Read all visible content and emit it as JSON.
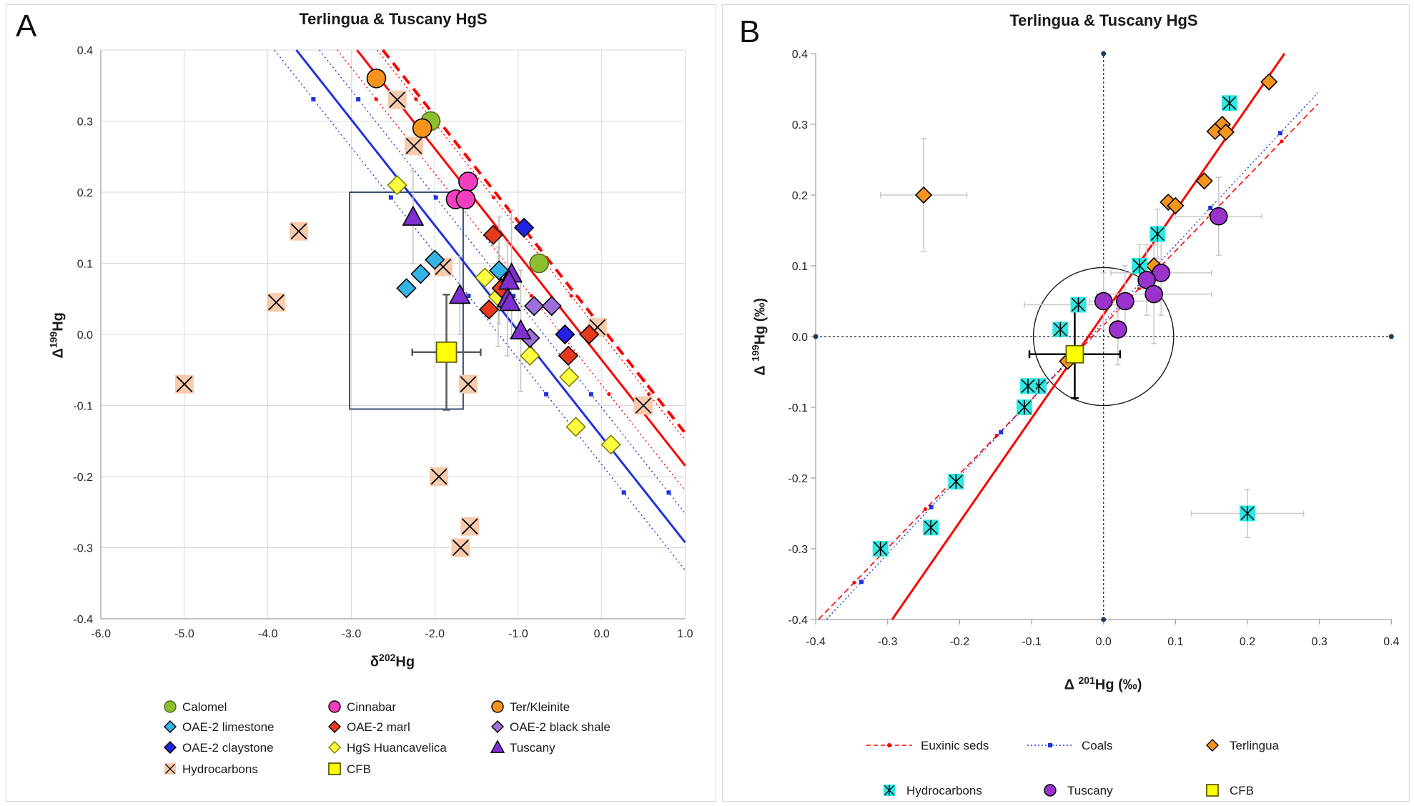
{
  "chart_data": [
    {
      "panel_label": "A",
      "type": "scatter",
      "title": "Terlingua & Tuscany HgS",
      "xlabel": {
        "pre": "δ",
        "sup": "202",
        "post": "Hg"
      },
      "ylabel": {
        "pre": "Δ",
        "sup": "199",
        "post": "Hg"
      },
      "xlim": [
        -6.0,
        1.0
      ],
      "ylim": [
        -0.4,
        0.4
      ],
      "xtick_values": [
        -6,
        -5,
        -4,
        -3,
        -2,
        -1,
        0,
        1
      ],
      "xtick_labels": [
        "-6.0",
        "-5.0",
        "-4.0",
        "-3.0",
        "-2.0",
        "-1.0",
        "0.0",
        "1.0"
      ],
      "ytick_values": [
        0.4,
        0.3,
        0.2,
        0.1,
        0.0,
        -0.1,
        -0.2,
        -0.3,
        -0.4
      ],
      "ytick_labels": [
        "0.4",
        "0.3",
        "0.2",
        "0.1",
        "0.0",
        "-0.1",
        "-0.2",
        "-0.3",
        "-0.4"
      ],
      "grid": true,
      "annotation_box": {
        "x1": -3.02,
        "x2": -1.66,
        "y1": -0.105,
        "y2": 0.2,
        "color": "#1f3864"
      },
      "lines": [
        {
          "name": "coals-ci-lower",
          "color": "#2033dd",
          "width": 1.4,
          "dash": "2 4",
          "slope": -0.1487,
          "intercept": -0.183,
          "x1": -3.92,
          "x2": 1.0,
          "marker": {
            "shape": "square",
            "step": 0.93
          }
        },
        {
          "name": "coals-fit",
          "color": "#2033dd",
          "width": 3,
          "dash": "",
          "slope": -0.1487,
          "intercept": -0.144,
          "x1": -3.659,
          "x2": 1.0
        },
        {
          "name": "coals-ci-upper",
          "color": "#2033dd",
          "width": 1.4,
          "dash": "2 4",
          "slope": -0.1487,
          "intercept": -0.103,
          "x1": -3.382,
          "x2": 1.0,
          "marker": {
            "shape": "square",
            "step": 0.93
          }
        },
        {
          "name": "euxinic-ci-lower",
          "color": "#ff0000",
          "width": 1.4,
          "dash": "2 4",
          "slope": -0.1487,
          "intercept": -0.071,
          "x1": -3.168,
          "x2": 1.0,
          "marker": {
            "shape": "dot",
            "step": 0.93
          }
        },
        {
          "name": "euxinic-fit",
          "color": "#ff0000",
          "width": 3,
          "dash": "",
          "slope": -0.1487,
          "intercept": -0.036,
          "x1": -2.932,
          "x2": 1.0
        },
        {
          "name": "euxinic-ci-upper",
          "color": "#ff0000",
          "width": 1.4,
          "dash": "2 4",
          "slope": -0.1487,
          "intercept": 0.0,
          "x1": -2.69,
          "x2": 1.0,
          "marker": {
            "shape": "dot",
            "step": 0.93
          }
        },
        {
          "name": "reference-dashed",
          "color": "#ff0000",
          "width": 4,
          "dash": "14 9",
          "slope": -0.1487,
          "intercept": 0.01,
          "x1": -2.623,
          "x2": 1.0,
          "marker": {
            "shape": "dot",
            "step": 1.25
          }
        }
      ],
      "error_bars": [
        {
          "x": -2.26,
          "y": 0.165,
          "ey": 0.065
        },
        {
          "x": -1.7,
          "y": 0.055,
          "ey": 0.055
        },
        {
          "x": -1.08,
          "y": 0.085,
          "ey": 0.09
        },
        {
          "x": -1.13,
          "y": 0.05,
          "ey": 0.08
        },
        {
          "x": -0.97,
          "y": 0.005,
          "ey": 0.085
        },
        {
          "x": -1.23,
          "y": 0.09,
          "ey": 0.075
        },
        {
          "x": -1.24,
          "y": 0.053,
          "ey": 0.07
        },
        {
          "x": -1.86,
          "y": -0.025,
          "ex": 0.41,
          "ey": 0.081,
          "color": "#595959",
          "w": 2.5,
          "cap": 10
        }
      ],
      "series": [
        {
          "name": "Hydrocarbons",
          "marker": "xsquare",
          "fill": "#f8cbad",
          "stroke": "#f8cbad",
          "size": 13,
          "points": [
            [
              -5.0,
              -0.07
            ],
            [
              -3.9,
              0.045
            ],
            [
              -3.63,
              0.145
            ],
            [
              -2.45,
              0.33
            ],
            [
              -2.25,
              0.265
            ],
            [
              -1.9,
              0.095
            ],
            [
              -1.95,
              -0.2
            ],
            [
              -1.6,
              -0.07
            ],
            [
              -1.58,
              -0.27
            ],
            [
              -1.69,
              -0.3
            ],
            [
              -0.05,
              0.01
            ],
            [
              0.5,
              -0.1
            ]
          ]
        },
        {
          "name": "HgS Huancavelica",
          "marker": "diamond",
          "fill": "#ffff42",
          "stroke": "#7f7f00",
          "size": 13,
          "points": [
            [
              -2.45,
              0.21
            ],
            [
              -1.4,
              0.08
            ],
            [
              -1.24,
              0.053
            ],
            [
              -0.86,
              -0.03
            ],
            [
              -0.39,
              -0.06
            ],
            [
              -0.31,
              -0.13
            ],
            [
              0.11,
              -0.155
            ]
          ]
        },
        {
          "name": "OAE-2 black shale",
          "marker": "diamond",
          "fill": "#9e6fd8",
          "stroke": "#000000",
          "size": 13,
          "points": [
            [
              -0.81,
              0.04
            ],
            [
              -0.6,
              0.04
            ],
            [
              -0.86,
              -0.005
            ]
          ]
        },
        {
          "name": "OAE-2 marl",
          "marker": "diamond",
          "fill": "#e8391d",
          "stroke": "#000000",
          "size": 13,
          "points": [
            [
              -1.3,
              0.14
            ],
            [
              -1.2,
              0.065
            ],
            [
              -1.35,
              0.035
            ],
            [
              -0.4,
              -0.03
            ],
            [
              -0.15,
              0.0
            ]
          ]
        },
        {
          "name": "OAE-2 limestone",
          "marker": "diamond",
          "fill": "#33b3e6",
          "stroke": "#000000",
          "size": 13,
          "points": [
            [
              -2.34,
              0.065
            ],
            [
              -2.17,
              0.085
            ],
            [
              -2.0,
              0.105
            ],
            [
              -1.23,
              0.09
            ]
          ]
        },
        {
          "name": "OAE-2 claystone",
          "marker": "diamond",
          "fill": "#2222e0",
          "stroke": "#000000",
          "size": 13,
          "points": [
            [
              -0.93,
              0.15
            ],
            [
              -0.44,
              0.0
            ]
          ]
        },
        {
          "name": "Tuscany",
          "marker": "triangle",
          "fill": "#7e2fd0",
          "stroke": "#000000",
          "size": 14,
          "points": [
            [
              -2.26,
              0.165
            ],
            [
              -1.7,
              0.055
            ],
            [
              -1.08,
              0.085
            ],
            [
              -1.11,
              0.075
            ],
            [
              -1.13,
              0.05
            ],
            [
              -1.1,
              0.045
            ],
            [
              -0.97,
              0.005
            ]
          ]
        },
        {
          "name": "Calomel",
          "marker": "circle",
          "fill": "#8cbf2f",
          "stroke": "#4e6b1f",
          "size": 13,
          "points": [
            [
              -2.05,
              0.3
            ],
            [
              -0.75,
              0.1
            ]
          ]
        },
        {
          "name": "Ter/Kleinite",
          "marker": "circle",
          "fill": "#f7941d",
          "stroke": "#000000",
          "size": 13,
          "points": [
            [
              -2.7,
              0.36
            ],
            [
              -2.15,
              0.29
            ]
          ]
        },
        {
          "name": "Cinnabar",
          "marker": "circle",
          "fill": "#f23fc0",
          "stroke": "#000000",
          "size": 13,
          "points": [
            [
              -1.6,
              0.215
            ],
            [
              -1.75,
              0.19
            ],
            [
              -1.63,
              0.19
            ]
          ]
        },
        {
          "name": "CFB",
          "marker": "square",
          "fill": "#ffff00",
          "stroke": "#5f5f00",
          "size": 14,
          "points": [
            [
              -1.86,
              -0.025
            ]
          ]
        }
      ],
      "legend": [
        {
          "label": "Calomel",
          "marker": "circle",
          "fill": "#8cbf2f",
          "stroke": "#4e6b1f"
        },
        {
          "label": "Cinnabar",
          "marker": "circle",
          "fill": "#f23fc0",
          "stroke": "#000000"
        },
        {
          "label": "Ter/Kleinite",
          "marker": "circle",
          "fill": "#f7941d",
          "stroke": "#000000"
        },
        {
          "label": "OAE-2 limestone",
          "marker": "diamond",
          "fill": "#33b3e6",
          "stroke": "#000000"
        },
        {
          "label": "OAE-2 marl",
          "marker": "diamond",
          "fill": "#e8391d",
          "stroke": "#000000"
        },
        {
          "label": "OAE-2 black shale",
          "marker": "diamond",
          "fill": "#9e6fd8",
          "stroke": "#000000"
        },
        {
          "label": "OAE-2 claystone",
          "marker": "diamond",
          "fill": "#2222e0",
          "stroke": "#000000"
        },
        {
          "label": "HgS Huancavelica",
          "marker": "diamond",
          "fill": "#ffff42",
          "stroke": "#7f7f00"
        },
        {
          "label": "Tuscany",
          "marker": "triangle",
          "fill": "#7e2fd0",
          "stroke": "#000000"
        },
        {
          "label": "Hydrocarbons",
          "marker": "xsquare",
          "fill": "#f8cbad",
          "stroke": "#f8cbad"
        },
        {
          "label": "CFB",
          "marker": "square",
          "fill": "#ffff00",
          "stroke": "#5f5f00"
        }
      ]
    },
    {
      "panel_label": "B",
      "type": "scatter",
      "title": "Terlingua & Tuscany HgS",
      "xlabel": {
        "pre": "Δ ",
        "sup": "201",
        "post": "Hg (‰)"
      },
      "ylabel": {
        "pre": "Δ ",
        "sup": "199",
        "post": "Hg (‰)"
      },
      "xlim": [
        -0.4,
        0.4
      ],
      "ylim": [
        -0.4,
        0.4
      ],
      "xtick_values": [
        -0.4,
        -0.3,
        -0.2,
        -0.1,
        0.0,
        0.1,
        0.2,
        0.3,
        0.4
      ],
      "xtick_labels": [
        "-0.4",
        "-0.3",
        "-0.2",
        "-0.1",
        "0.0",
        "0.1",
        "0.2",
        "0.3",
        "0.4"
      ],
      "ytick_values": [
        0.4,
        0.3,
        0.2,
        0.1,
        0.0,
        -0.1,
        -0.2,
        -0.3,
        -0.4
      ],
      "ytick_labels": [
        "0.4",
        "0.3",
        "0.2",
        "0.1",
        "0.0",
        "-0.1",
        "-0.2",
        "-0.3",
        "-0.4"
      ],
      "grid": false,
      "zero_lines": {
        "color": "#404040",
        "dot_color": "#1f3864"
      },
      "annotation_circle": {
        "cx": 0.0,
        "cy": 0.0,
        "r": 0.0975,
        "color": "#1a1a1a"
      },
      "lines": [
        {
          "name": "euxinic-seds-line",
          "color": "#ff0000",
          "width": 1.6,
          "dash": "8 5",
          "slope": 1.05,
          "intercept": 0.016,
          "x1": -0.396,
          "x2": 0.298,
          "marker": {
            "shape": "dot",
            "step": 0.099
          }
        },
        {
          "name": "coals-line",
          "color": "#2033dd",
          "width": 1.4,
          "dash": "2 3.5",
          "slope": 1.09,
          "intercept": 0.02,
          "x1": -0.385,
          "x2": 0.298,
          "marker": {
            "shape": "square",
            "step": 0.097
          }
        },
        {
          "name": "fit-all-line",
          "color": "#ff0000",
          "width": 3,
          "dash": "",
          "slope": 1.467,
          "intercept": 0.031,
          "x1": -0.2938,
          "x2": 0.2516
        }
      ],
      "error_bars": [
        {
          "x": -0.25,
          "y": 0.2,
          "ex": 0.06,
          "ey": 0.08
        },
        {
          "x": 0.16,
          "y": 0.17,
          "ex": 0.06,
          "ey": 0.055
        },
        {
          "x": 0.08,
          "y": 0.09,
          "ex": 0.07,
          "ey": 0.06
        },
        {
          "x": 0.06,
          "y": 0.08,
          "ey": 0.05
        },
        {
          "x": 0.07,
          "y": 0.06,
          "ex": 0.08,
          "ey": 0.07
        },
        {
          "x": 0.03,
          "y": 0.05,
          "ex": 0.05,
          "ey": 0.05
        },
        {
          "x": 0.0,
          "y": 0.05,
          "ey": 0.04
        },
        {
          "x": 0.02,
          "y": 0.01,
          "ey": 0.05
        },
        {
          "x": -0.035,
          "y": 0.045,
          "ex": 0.075
        },
        {
          "x": 0.05,
          "y": 0.1,
          "ey": 0.03
        },
        {
          "x": 0.075,
          "y": 0.145,
          "ey": 0.035
        },
        {
          "x": 0.2,
          "y": -0.25,
          "ex": 0.078,
          "ey": 0.034
        },
        {
          "x": -0.04,
          "y": -0.025,
          "ex": 0.063,
          "ey": 0.062,
          "color": "#000000",
          "w": 2.5,
          "cap": 11
        }
      ],
      "series": [
        {
          "name": "Terlingua",
          "marker": "diamond",
          "fill": "#f7941d",
          "stroke": "#000000",
          "size": 11,
          "points": [
            [
              -0.25,
              0.2
            ],
            [
              0.23,
              0.36
            ],
            [
              0.165,
              0.3
            ],
            [
              0.155,
              0.29
            ],
            [
              0.17,
              0.289
            ],
            [
              0.14,
              0.22
            ],
            [
              0.09,
              0.19
            ],
            [
              0.1,
              0.185
            ],
            [
              0.07,
              0.1
            ],
            [
              -0.05,
              -0.035
            ]
          ]
        },
        {
          "name": "Hydrocarbons",
          "marker": "astsquare",
          "fill": "#2ee8e4",
          "stroke": "#2ee8e4",
          "size": 11,
          "points": [
            [
              0.175,
              0.33
            ],
            [
              0.075,
              0.145
            ],
            [
              0.05,
              0.1
            ],
            [
              -0.035,
              0.045
            ],
            [
              -0.06,
              0.01
            ],
            [
              -0.09,
              -0.07
            ],
            [
              -0.105,
              -0.07
            ],
            [
              -0.11,
              -0.1
            ],
            [
              -0.205,
              -0.205
            ],
            [
              -0.24,
              -0.27
            ],
            [
              -0.31,
              -0.3
            ],
            [
              0.2,
              -0.25
            ]
          ]
        },
        {
          "name": "Tuscany",
          "marker": "circle",
          "fill": "#9933cc",
          "stroke": "#000000",
          "size": 12,
          "points": [
            [
              0.16,
              0.17
            ],
            [
              0.08,
              0.09
            ],
            [
              0.06,
              0.08
            ],
            [
              0.07,
              0.06
            ],
            [
              0.03,
              0.05
            ],
            [
              0.0,
              0.05
            ],
            [
              0.02,
              0.01
            ]
          ]
        },
        {
          "name": "CFB",
          "marker": "square",
          "fill": "#ffff00",
          "stroke": "#5f5f00",
          "size": 12,
          "points": [
            [
              -0.04,
              -0.025
            ]
          ]
        }
      ],
      "legend": [
        {
          "label": "Euxinic seds",
          "marker": "line-dashed",
          "fill": "#ff0000",
          "stroke": "#ff0000"
        },
        {
          "label": "Coals",
          "marker": "line-dotted",
          "fill": "#2033dd",
          "stroke": "#2033dd"
        },
        {
          "label": "Terlingua",
          "marker": "diamond",
          "fill": "#f7941d",
          "stroke": "#000000"
        },
        {
          "label": "Hydrocarbons",
          "marker": "astsquare",
          "fill": "#2ee8e4",
          "stroke": "#2ee8e4"
        },
        {
          "label": "Tuscany",
          "marker": "circle",
          "fill": "#9933cc",
          "stroke": "#000000"
        },
        {
          "label": "CFB",
          "marker": "square",
          "fill": "#ffff00",
          "stroke": "#5f5f00"
        }
      ]
    }
  ]
}
